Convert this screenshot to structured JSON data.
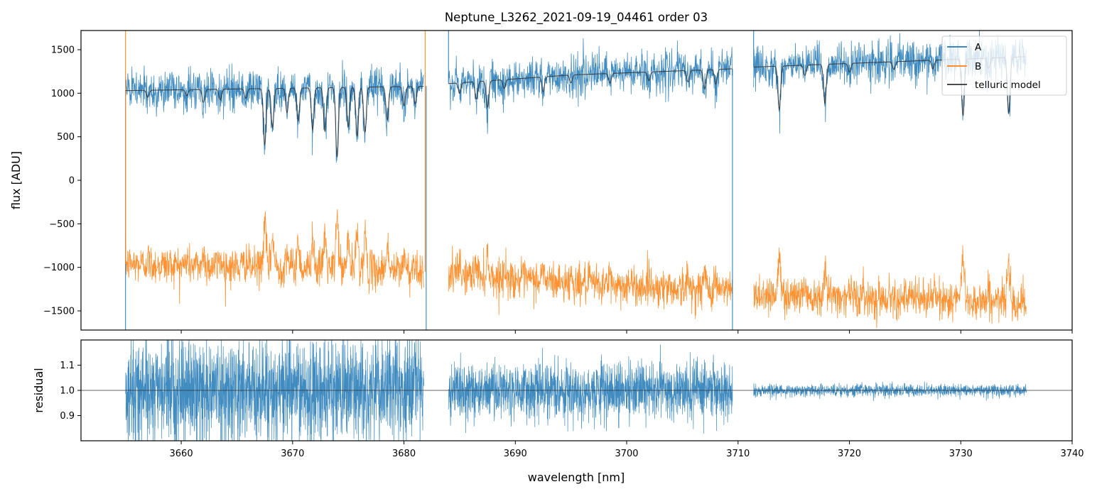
{
  "chart_data": [
    {
      "type": "line",
      "panel": "top",
      "title": "Neptune_L3262_2021-09-19_04461  order 03",
      "xlabel": "",
      "ylabel": "flux [ADU]",
      "xlim": [
        3651,
        3740
      ],
      "ylim": [
        -1720,
        1720
      ],
      "yticks": [
        -1500,
        -1000,
        -500,
        0,
        500,
        1000,
        1500
      ],
      "ytick_labels": [
        "−1500",
        "−1000",
        "−500",
        "0",
        "500",
        "1000",
        "1500"
      ],
      "segments": [
        [
          3655.0,
          3681.8
        ],
        [
          3684.0,
          3709.5
        ],
        [
          3711.4,
          3735.9
        ]
      ],
      "legend": {
        "location": "upper right",
        "entries": [
          {
            "label": "A",
            "color": "#1f77b4"
          },
          {
            "label": "B",
            "color": "#ff7f0e"
          },
          {
            "label": "telluric model",
            "color": "#333333"
          }
        ]
      },
      "series": [
        {
          "name": "A",
          "color": "#1f77b4",
          "noise": 115,
          "baseline": [
            [
              3655.0,
              1030
            ],
            [
              3681.8,
              1080
            ],
            [
              3684.0,
              1110
            ],
            [
              3695,
              1210
            ],
            [
              3709.5,
              1280
            ],
            [
              3711.4,
              1300
            ],
            [
              3735.9,
              1420
            ]
          ]
        },
        {
          "name": "B",
          "color": "#ff7f0e",
          "noise": 110,
          "baseline": [
            [
              3655.0,
              -960
            ],
            [
              3681.8,
              -1050
            ],
            [
              3684.0,
              -1080
            ],
            [
              3695,
              -1180
            ],
            [
              3709.5,
              -1270
            ],
            [
              3711.4,
              -1300
            ],
            [
              3735.9,
              -1400
            ]
          ]
        },
        {
          "name": "telluric model",
          "color": "#333333",
          "baseline": [
            [
              3655.0,
              1030
            ],
            [
              3681.8,
              1080
            ],
            [
              3684.0,
              1110
            ],
            [
              3695,
              1210
            ],
            [
              3709.5,
              1280
            ],
            [
              3711.4,
              1300
            ],
            [
              3735.9,
              1420
            ]
          ]
        }
      ],
      "absorption_lines": [
        [
          3657.0,
          80
        ],
        [
          3660.5,
          70
        ],
        [
          3662.0,
          150
        ],
        [
          3663.5,
          120
        ],
        [
          3665.8,
          110
        ],
        [
          3667.5,
          650
        ],
        [
          3668.2,
          450
        ],
        [
          3669.5,
          280
        ],
        [
          3670.5,
          380
        ],
        [
          3671.8,
          480
        ],
        [
          3672.9,
          500
        ],
        [
          3674.0,
          800
        ],
        [
          3675.0,
          450
        ],
        [
          3675.8,
          560
        ],
        [
          3676.5,
          520
        ],
        [
          3678.5,
          380
        ],
        [
          3680.0,
          220
        ],
        [
          3681.0,
          200
        ],
        [
          3685.0,
          120
        ],
        [
          3686.5,
          200
        ],
        [
          3687.5,
          300
        ],
        [
          3689.0,
          100
        ],
        [
          3692.5,
          170
        ],
        [
          3695.0,
          90
        ],
        [
          3698.5,
          110
        ],
        [
          3702.0,
          100
        ],
        [
          3705.5,
          130
        ],
        [
          3707.0,
          220
        ],
        [
          3708.0,
          170
        ],
        [
          3713.7,
          500
        ],
        [
          3716.0,
          120
        ],
        [
          3717.8,
          450
        ],
        [
          3720.0,
          100
        ],
        [
          3724.0,
          90
        ],
        [
          3727.5,
          100
        ],
        [
          3730.2,
          650
        ],
        [
          3732.5,
          120
        ],
        [
          3734.3,
          650
        ]
      ],
      "spikes": [
        {
          "x": 3655.0,
          "series": "A",
          "to": -1720
        },
        {
          "x": 3655.0,
          "series": "B",
          "to": 1720
        },
        {
          "x": 3681.9,
          "series": "B",
          "to": 1720
        },
        {
          "x": 3682.0,
          "series": "A",
          "to": -1720
        },
        {
          "x": 3684.0,
          "series": "A",
          "to": 1720
        },
        {
          "x": 3709.5,
          "series": "A",
          "to": -1720
        },
        {
          "x": 3711.4,
          "series": "A",
          "to": 1720
        }
      ]
    },
    {
      "type": "line",
      "panel": "bottom",
      "xlabel": "wavelength [nm]",
      "ylabel": "residual",
      "xlim": [
        3651,
        3740
      ],
      "ylim": [
        0.8,
        1.2
      ],
      "xticks": [
        3660,
        3670,
        3680,
        3690,
        3700,
        3710,
        3720,
        3730,
        3740
      ],
      "xtick_labels": [
        "3660",
        "3670",
        "3680",
        "3690",
        "3700",
        "3710",
        "3720",
        "3730",
        "3740"
      ],
      "yticks": [
        0.9,
        1.0,
        1.1
      ],
      "ytick_labels": [
        "0.9",
        "1.0",
        "1.1"
      ],
      "reference_line": 1.0,
      "series": [
        {
          "name": "residual",
          "color": "#1f77b4",
          "segments": [
            {
              "range": [
                3655.0,
                3681.8
              ],
              "amplitude": 0.1
            },
            {
              "range": [
                3684.0,
                3709.5
              ],
              "amplitude": 0.055
            },
            {
              "range": [
                3711.4,
                3735.9
              ],
              "amplitude": 0.012
            }
          ]
        }
      ]
    }
  ]
}
